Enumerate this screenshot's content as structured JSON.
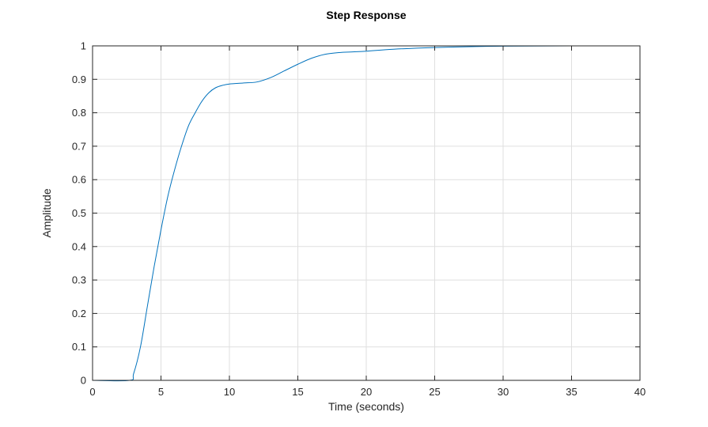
{
  "chart_data": {
    "type": "line",
    "title": "Step Response",
    "xlabel": "Time (seconds)",
    "ylabel": "Amplitude",
    "xlim": [
      0,
      40
    ],
    "ylim": [
      0,
      1
    ],
    "xticks": [
      0,
      5,
      10,
      15,
      20,
      25,
      30,
      35,
      40
    ],
    "yticks": [
      0,
      0.1,
      0.2,
      0.3,
      0.4,
      0.5,
      0.6,
      0.7,
      0.8,
      0.9,
      1
    ],
    "grid": true,
    "legend": "none",
    "reference_line": {
      "y": 1,
      "color": "#000000",
      "style": "dotted"
    },
    "series": [
      {
        "color": "#0072BD",
        "points": [
          [
            0,
            0
          ],
          [
            2.7,
            0
          ],
          [
            3.0,
            0.02
          ],
          [
            3.5,
            0.1
          ],
          [
            4.0,
            0.22
          ],
          [
            4.5,
            0.34
          ],
          [
            5.0,
            0.45
          ],
          [
            5.5,
            0.55
          ],
          [
            6.0,
            0.63
          ],
          [
            6.5,
            0.7
          ],
          [
            7.0,
            0.76
          ],
          [
            7.5,
            0.8
          ],
          [
            8.0,
            0.835
          ],
          [
            8.5,
            0.86
          ],
          [
            9.0,
            0.875
          ],
          [
            9.5,
            0.882
          ],
          [
            10.0,
            0.886
          ],
          [
            11.0,
            0.889
          ],
          [
            12.0,
            0.892
          ],
          [
            13.0,
            0.905
          ],
          [
            14.0,
            0.925
          ],
          [
            15.0,
            0.945
          ],
          [
            16.0,
            0.963
          ],
          [
            17.0,
            0.975
          ],
          [
            18.0,
            0.98
          ],
          [
            19.0,
            0.982
          ],
          [
            20.0,
            0.984
          ],
          [
            22.0,
            0.99
          ],
          [
            25.0,
            0.995
          ],
          [
            28.0,
            0.998
          ],
          [
            30.0,
            0.999
          ],
          [
            35.0,
            1.0
          ],
          [
            40.0,
            1.0
          ]
        ]
      }
    ]
  }
}
